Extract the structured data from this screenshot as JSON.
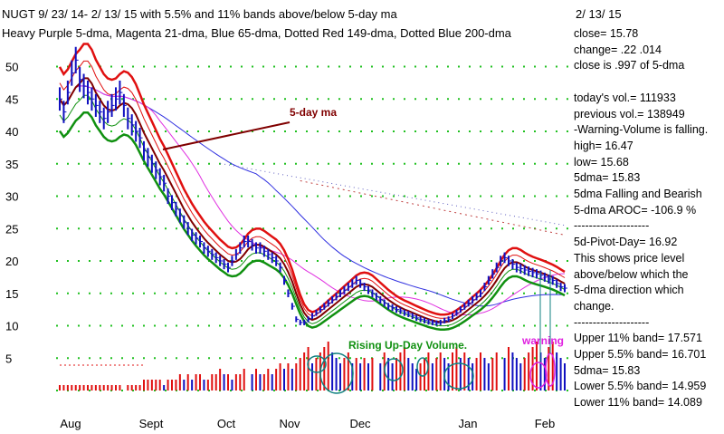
{
  "header": {
    "line1": "NUGT   9/ 23/ 14- 2/ 13/ 15 with  5.5% and 11% bands above/below 5-day ma",
    "line2": "Heavy Purple 5-dma, Magenta 21-dma, Blue 65-dma, Dotted Red 149-dma, Dotted Blue 200-dma",
    "date": "2/ 13/ 15"
  },
  "stats": [
    "close=   15.78",
    "change=  .22   .014",
    "close is  .997  of 5-dma",
    "",
    "today's vol.=  111933",
    "previous vol.=  138949",
    "-Warning-Volume is falling.",
    "high=  16.47",
    "low=  15.68",
    "5dma=  15.83",
    "5dma Falling and Bearish",
    "5-dma AROC=  -106.9 %",
    "--------------------",
    "5d-Pivot-Day=  16.92",
    "This shows price level",
    "above/below which the",
    "5-dma direction which",
    "change.",
    "--------------------",
    "Upper  11% band=  17.571",
    "Upper  5.5% band=  16.701",
    "5dma=  15.83",
    "Lower  5.5% band=  14.959",
    "Lower  11% band=  14.089"
  ],
  "annotations": {
    "ma_label": "5-day ma",
    "volume_label": "Rising Up-Day Volume.",
    "warning_label": "warning"
  },
  "colors": {
    "price_bar": "#1010c0",
    "upper_band": "#e01010",
    "lower_band": "#109010",
    "ma5": "#800000",
    "ma21": "#e030e0",
    "ma65": "#3030e0",
    "ma149": "#c04040",
    "ma200": "#6060c0",
    "grid_dot": "#20c020",
    "vol_up": "#e01010",
    "vol_down": "#1010c0",
    "ma_label": "#800000",
    "volume_label": "#109010",
    "warning": "#e020e0",
    "ellipse_teal": "#108080"
  },
  "chart_data": {
    "type": "line",
    "xlabel": "",
    "ylabel": "",
    "ylim": [
      0,
      55
    ],
    "y_ticks": [
      5,
      10,
      15,
      20,
      25,
      30,
      35,
      40,
      45,
      50
    ],
    "x_tick_labels": [
      "Aug",
      "Sept",
      "Oct",
      "Nov",
      "Dec",
      "Jan",
      "Feb"
    ],
    "grid": "dotted",
    "series": [
      {
        "name": "NUGT close",
        "values": [
          45,
          43,
          46,
          49,
          51,
          48,
          47,
          46,
          45,
          44,
          43,
          42,
          43,
          44,
          45,
          46,
          44,
          42,
          41,
          40,
          39,
          37,
          36,
          35,
          34,
          33,
          32,
          30,
          29,
          28,
          27,
          26,
          25,
          24,
          23.5,
          23,
          22,
          21.5,
          21,
          20.5,
          20,
          19.5,
          19,
          20,
          21,
          22,
          23,
          23,
          22.5,
          22,
          22,
          21.5,
          21,
          20.5,
          20,
          19,
          17,
          15,
          13,
          11,
          10.5,
          10.5,
          11,
          11.5,
          12,
          12.5,
          13,
          13.5,
          14,
          14.5,
          15,
          15.5,
          16,
          16.5,
          17,
          16.5,
          16,
          15.5,
          15,
          14.5,
          14,
          13.5,
          13,
          12.8,
          12.5,
          12.3,
          12,
          11.8,
          11.5,
          11.2,
          11,
          10.8,
          10.6,
          10.5,
          10.4,
          10.5,
          10.8,
          11,
          11.5,
          12,
          12.5,
          13,
          13.5,
          14,
          14.5,
          15,
          16,
          17,
          18,
          19,
          20,
          20.5,
          20,
          19.5,
          19,
          18.8,
          18.6,
          18.4,
          18.2,
          18,
          17.8,
          17.5,
          17.2,
          17,
          16.5,
          16,
          15.8
        ]
      }
    ],
    "volume": {
      "series": "daily volume bars",
      "values": [
        1,
        1,
        1,
        1,
        1,
        1,
        1,
        1,
        1,
        1,
        1,
        1,
        1,
        1,
        1,
        1,
        1,
        1,
        1,
        1,
        2,
        2,
        2,
        2,
        2,
        1,
        2,
        2,
        2,
        3,
        2,
        3,
        2,
        3,
        3,
        2,
        2,
        3,
        3,
        4,
        3,
        3,
        2,
        3,
        3,
        4,
        3,
        4,
        3,
        3,
        4,
        3,
        4,
        5,
        4,
        5,
        4,
        5,
        6,
        7,
        8,
        5,
        6,
        7,
        8,
        9,
        7,
        6,
        5,
        6,
        7,
        5,
        6,
        5,
        6,
        5,
        6,
        5,
        7,
        6,
        5,
        6,
        7,
        8,
        6,
        5,
        4,
        5,
        6,
        7,
        5,
        6,
        7,
        6,
        5,
        7,
        8,
        6,
        7,
        6,
        5,
        6,
        7,
        6,
        5,
        6,
        7,
        6,
        8,
        7,
        6,
        5,
        6,
        7,
        8,
        9,
        7,
        6,
        8,
        9,
        7,
        6,
        5
      ]
    }
  }
}
